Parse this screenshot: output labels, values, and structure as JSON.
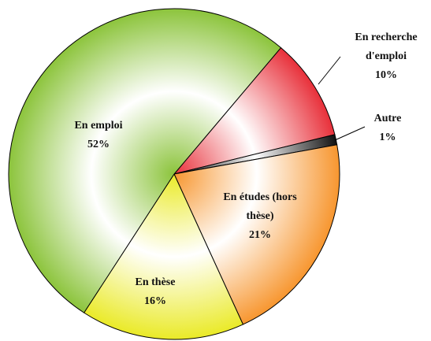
{
  "chart_data": {
    "type": "pie",
    "categories": [
      "En recherche d'emploi",
      "Autre",
      "En études (hors thèse)",
      "En thèse",
      "En emploi"
    ],
    "values": [
      10,
      1,
      21,
      16,
      52
    ],
    "value_labels": [
      "10%",
      "1%",
      "21%",
      "16%",
      "52%"
    ],
    "colors": [
      "#e8303a",
      "#111111",
      "#f7962f",
      "#eaea28",
      "#8cc43c"
    ]
  }
}
